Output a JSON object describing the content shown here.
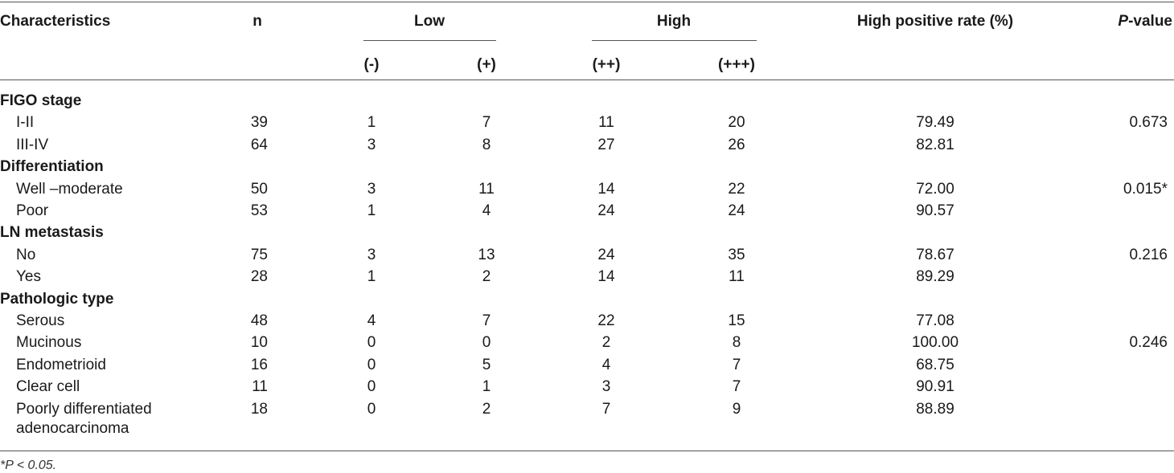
{
  "header": {
    "characteristics": "Characteristics",
    "n": "n",
    "low": "Low",
    "high": "High",
    "rate": "High positive rate (%)",
    "p_italic": "P",
    "p_rest": "-value",
    "neg": "(-)",
    "pos1": "(+)",
    "pos2": "(++)",
    "pos3": "(+++)"
  },
  "sections": [
    {
      "title": "FIGO stage",
      "rows": [
        {
          "label": "I-II",
          "n": "39",
          "neg": "1",
          "pos1": "7",
          "pos2": "11",
          "pos3": "20",
          "rate": "79.49",
          "p": "0.673"
        },
        {
          "label": "III-IV",
          "n": "64",
          "neg": "3",
          "pos1": "8",
          "pos2": "27",
          "pos3": "26",
          "rate": "82.81",
          "p": ""
        }
      ]
    },
    {
      "title": "Differentiation",
      "rows": [
        {
          "label": "Well –moderate",
          "n": "50",
          "neg": "3",
          "pos1": "11",
          "pos2": "14",
          "pos3": "22",
          "rate": "72.00",
          "p": "0.015*"
        },
        {
          "label": "Poor",
          "n": "53",
          "neg": "1",
          "pos1": "4",
          "pos2": "24",
          "pos3": "24",
          "rate": "90.57",
          "p": ""
        }
      ]
    },
    {
      "title": "LN metastasis",
      "rows": [
        {
          "label": "No",
          "n": "75",
          "neg": "3",
          "pos1": "13",
          "pos2": "24",
          "pos3": "35",
          "rate": "78.67",
          "p": "0.216"
        },
        {
          "label": "Yes",
          "n": "28",
          "neg": "1",
          "pos1": "2",
          "pos2": "14",
          "pos3": "11",
          "rate": "89.29",
          "p": ""
        }
      ]
    },
    {
      "title": "Pathologic type",
      "rows": [
        {
          "label": "Serous",
          "n": "48",
          "neg": "4",
          "pos1": "7",
          "pos2": "22",
          "pos3": "15",
          "rate": "77.08",
          "p": ""
        },
        {
          "label": "Mucinous",
          "n": "10",
          "neg": "0",
          "pos1": "0",
          "pos2": "2",
          "pos3": "8",
          "rate": "100.00",
          "p": "0.246"
        },
        {
          "label": "Endometrioid",
          "n": "16",
          "neg": "0",
          "pos1": "5",
          "pos2": "4",
          "pos3": "7",
          "rate": "68.75",
          "p": ""
        },
        {
          "label": "Clear cell",
          "n": "11",
          "neg": "0",
          "pos1": "1",
          "pos2": "3",
          "pos3": "7",
          "rate": "90.91",
          "p": ""
        },
        {
          "label": "Poorly differentiated",
          "label2": "adenocarcinoma",
          "n": "18",
          "neg": "0",
          "pos1": "2",
          "pos2": "7",
          "pos3": "9",
          "rate": "88.89",
          "p": ""
        }
      ]
    }
  ],
  "footnote": "*P < 0.05."
}
